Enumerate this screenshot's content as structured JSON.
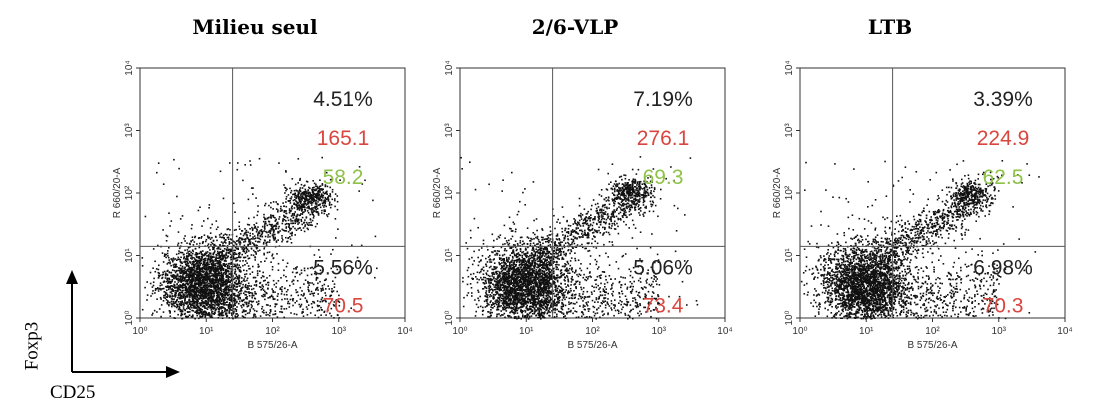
{
  "chart_data": [
    {
      "type": "scatter",
      "title": "Milieu seul",
      "xlabel": "B 575/26-A",
      "ylabel": "R 660/20-A",
      "x_scale": "log",
      "y_scale": "log",
      "xlim": [
        1,
        10000
      ],
      "ylim": [
        1,
        10000
      ],
      "x_ticks": [
        "10⁰",
        "10¹",
        "10²",
        "10³",
        "10⁴"
      ],
      "y_ticks": [
        "10⁰",
        "10¹",
        "10²",
        "10³",
        "10⁴"
      ],
      "gate": {
        "x": 25,
        "y": 14
      },
      "annotations": {
        "upper_right": [
          "4.51%",
          "165.1",
          "58.2"
        ],
        "lower_right": [
          "5.56%",
          "70.5"
        ]
      }
    },
    {
      "type": "scatter",
      "title": "2/6-VLP",
      "xlabel": "B 575/26-A",
      "ylabel": "R 660/20-A",
      "x_scale": "log",
      "y_scale": "log",
      "xlim": [
        1,
        10000
      ],
      "ylim": [
        1,
        10000
      ],
      "x_ticks": [
        "10⁰",
        "10¹",
        "10²",
        "10³",
        "10⁴"
      ],
      "y_ticks": [
        "10⁰",
        "10¹",
        "10²",
        "10³",
        "10⁴"
      ],
      "gate": {
        "x": 25,
        "y": 14
      },
      "annotations": {
        "upper_right": [
          "7.19%",
          "276.1",
          "69.3"
        ],
        "lower_right": [
          "5.06%",
          "73.4"
        ]
      }
    },
    {
      "type": "scatter",
      "title": "LTB",
      "xlabel": "B 575/26-A",
      "ylabel": "R 660/20-A",
      "x_scale": "log",
      "y_scale": "log",
      "xlim": [
        1,
        10000
      ],
      "ylim": [
        1,
        10000
      ],
      "x_ticks": [
        "10⁰",
        "10¹",
        "10²",
        "10³",
        "10⁴"
      ],
      "y_ticks": [
        "10⁰",
        "10¹",
        "10²",
        "10³",
        "10⁴"
      ],
      "gate": {
        "x": 25,
        "y": 14
      },
      "annotations": {
        "upper_right": [
          "3.39%",
          "224.9",
          "62.5"
        ],
        "lower_right": [
          "6.98%",
          "70.3"
        ]
      }
    }
  ],
  "legend_axes": {
    "y": "Foxp3",
    "x": "CD25"
  },
  "colors": {
    "black": "#222222",
    "red": "#d9463f",
    "green": "#8fc24a",
    "dots": "#111111"
  }
}
